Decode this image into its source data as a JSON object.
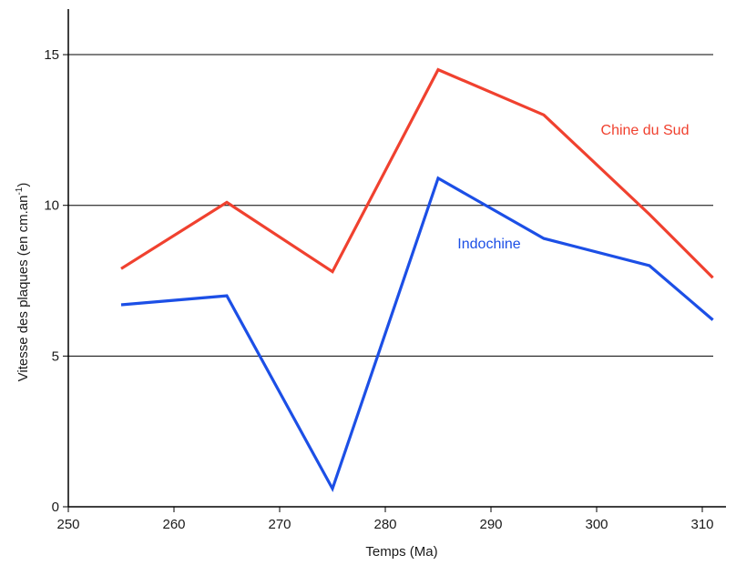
{
  "chart_data": {
    "type": "line",
    "title": "",
    "xlabel": "Temps (Ma)",
    "ylabel_main": "Vitesse des plaques (en cm.an",
    "ylabel_sup": "-1",
    "ylabel_close": ")",
    "xlim": [
      250,
      312
    ],
    "ylim": [
      0,
      17
    ],
    "x_ticks": [
      250,
      260,
      270,
      280,
      290,
      300,
      310
    ],
    "y_ticks": [
      0,
      5,
      10,
      15
    ],
    "gridlines_y": [
      5,
      10,
      15
    ],
    "grid": "horizontal",
    "series": [
      {
        "name": "Chine du Sud",
        "color": "#f0412f",
        "x": [
          255,
          265,
          275,
          285,
          295,
          305,
          311
        ],
        "y": [
          7.9,
          10.1,
          7.8,
          14.5,
          13.0,
          9.7,
          7.6
        ]
      },
      {
        "name": "Indochine",
        "color": "#1c4fe6",
        "x": [
          255,
          265,
          275,
          285,
          295,
          305,
          311
        ],
        "y": [
          6.7,
          7.0,
          0.6,
          10.9,
          8.9,
          8.0,
          6.2
        ]
      }
    ]
  }
}
